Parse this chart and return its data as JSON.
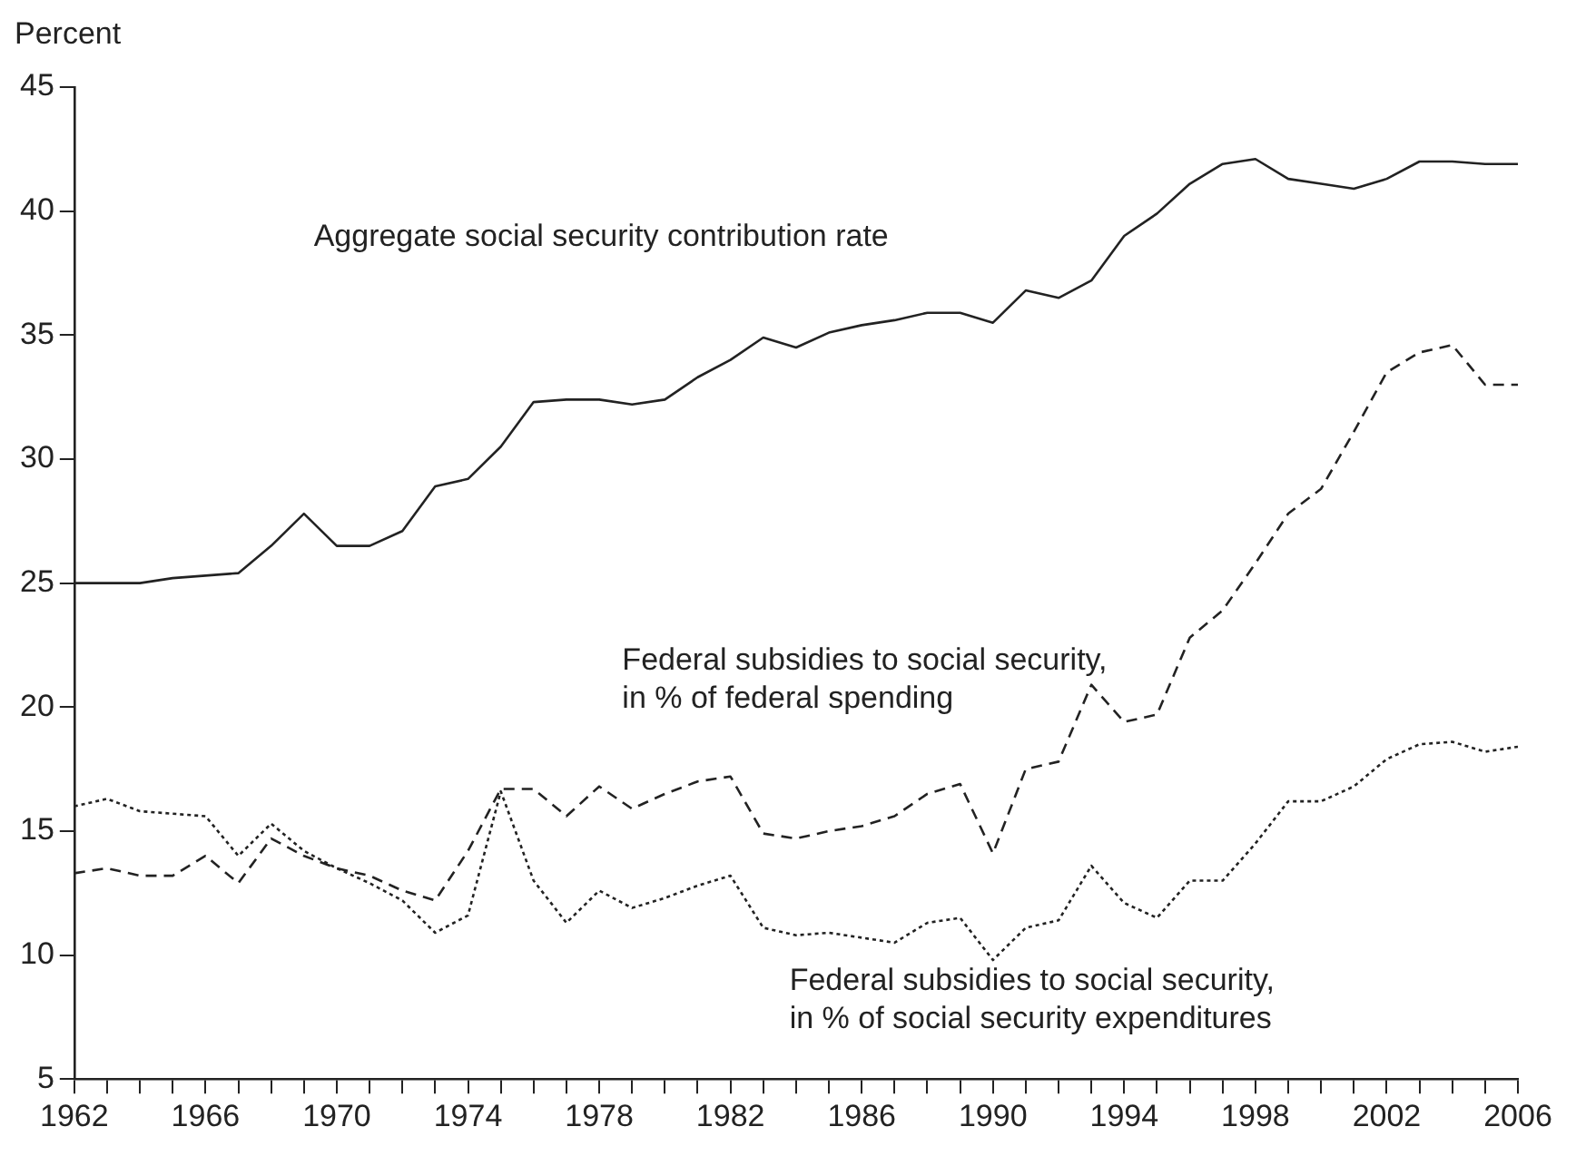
{
  "chart_data": {
    "type": "line",
    "ylabel": "Percent",
    "x": [
      1962,
      1963,
      1964,
      1965,
      1966,
      1967,
      1968,
      1969,
      1970,
      1971,
      1972,
      1973,
      1974,
      1975,
      1976,
      1977,
      1978,
      1979,
      1980,
      1981,
      1982,
      1983,
      1984,
      1985,
      1986,
      1987,
      1988,
      1989,
      1990,
      1991,
      1992,
      1993,
      1994,
      1995,
      1996,
      1997,
      1998,
      1999,
      2000,
      2001,
      2002,
      2003,
      2004,
      2005,
      2006
    ],
    "xlim": [
      1962,
      2006
    ],
    "xticks": [
      1962,
      {
        "value": 1963,
        "label": null
      },
      {
        "value": 1964,
        "label": null
      },
      {
        "value": 1965,
        "label": null
      },
      1966,
      {
        "value": 1967,
        "label": null
      },
      {
        "value": 1968,
        "label": null
      },
      {
        "value": 1969,
        "label": null
      },
      1970,
      {
        "value": 1971,
        "label": null
      },
      {
        "value": 1972,
        "label": null
      },
      {
        "value": 1973,
        "label": null
      },
      1974,
      {
        "value": 1975,
        "label": null
      },
      {
        "value": 1976,
        "label": null
      },
      {
        "value": 1977,
        "label": null
      },
      1978,
      {
        "value": 1979,
        "label": null
      },
      {
        "value": 1980,
        "label": null
      },
      {
        "value": 1981,
        "label": null
      },
      1982,
      {
        "value": 1983,
        "label": null
      },
      {
        "value": 1984,
        "label": null
      },
      {
        "value": 1985,
        "label": null
      },
      1986,
      {
        "value": 1987,
        "label": null
      },
      {
        "value": 1988,
        "label": null
      },
      {
        "value": 1989,
        "label": null
      },
      1990,
      {
        "value": 1991,
        "label": null
      },
      {
        "value": 1992,
        "label": null
      },
      {
        "value": 1993,
        "label": null
      },
      1994,
      {
        "value": 1995,
        "label": null
      },
      {
        "value": 1996,
        "label": null
      },
      {
        "value": 1997,
        "label": null
      },
      1998,
      {
        "value": 1999,
        "label": null
      },
      {
        "value": 2000,
        "label": null
      },
      {
        "value": 2001,
        "label": null
      },
      2002,
      {
        "value": 2003,
        "label": null
      },
      {
        "value": 2004,
        "label": null
      },
      {
        "value": 2005,
        "label": null
      },
      2006
    ],
    "ylim": [
      5,
      45
    ],
    "yticks": [
      5,
      10,
      15,
      20,
      25,
      30,
      35,
      40,
      45
    ],
    "grid": false,
    "legend": false,
    "marker": "none",
    "series": [
      {
        "name": "Aggregate social security contribution rate",
        "color": "#222222",
        "line_style": "solid",
        "values": [
          25,
          25,
          25,
          25.2,
          25.3,
          25.4,
          26.5,
          27.8,
          26.5,
          26.5,
          27.1,
          28.9,
          29.2,
          30.5,
          32.3,
          32.4,
          32.4,
          32.2,
          32.4,
          33.3,
          34.0,
          34.9,
          34.5,
          35.1,
          35.4,
          35.6,
          35.9,
          35.9,
          35.5,
          36.8,
          36.5,
          37.2,
          39.0,
          39.9,
          41.1,
          41.9,
          42.1,
          41.3,
          41.1,
          40.9,
          41.3,
          42.0,
          42.0,
          41.9,
          41.9
        ]
      },
      {
        "name": "Federal subsidies to social security,\nin % of federal spending",
        "color": "#222222",
        "line_style": "dashed",
        "values": [
          13.3,
          13.5,
          13.2,
          13.2,
          14.0,
          12.9,
          14.7,
          14.0,
          13.5,
          13.2,
          12.6,
          12.2,
          14.2,
          16.7,
          16.7,
          15.6,
          16.8,
          15.9,
          16.5,
          17.0,
          17.2,
          14.9,
          14.7,
          15.0,
          15.2,
          15.6,
          16.5,
          16.9,
          14.1,
          17.5,
          17.8,
          20.9,
          19.4,
          19.7,
          22.8,
          23.9,
          25.8,
          27.8,
          28.8,
          31.1,
          33.5,
          34.3,
          34.6,
          33.0,
          33.0
        ]
      },
      {
        "name": "Federal subsidies to social security,\nin % of social security expenditures",
        "color": "#222222",
        "line_style": "dotted",
        "values": [
          16.0,
          16.3,
          15.8,
          15.7,
          15.6,
          14.0,
          15.3,
          14.2,
          13.5,
          12.9,
          12.2,
          10.9,
          11.6,
          16.6,
          13.0,
          11.3,
          12.6,
          11.9,
          12.3,
          12.8,
          13.2,
          11.1,
          10.8,
          10.9,
          10.7,
          10.5,
          11.3,
          11.5,
          9.8,
          11.1,
          11.4,
          13.6,
          12.1,
          11.5,
          13.0,
          13.0,
          14.5,
          16.2,
          16.2,
          16.8,
          17.9,
          18.5,
          18.6,
          18.2,
          18.4
        ]
      }
    ]
  }
}
